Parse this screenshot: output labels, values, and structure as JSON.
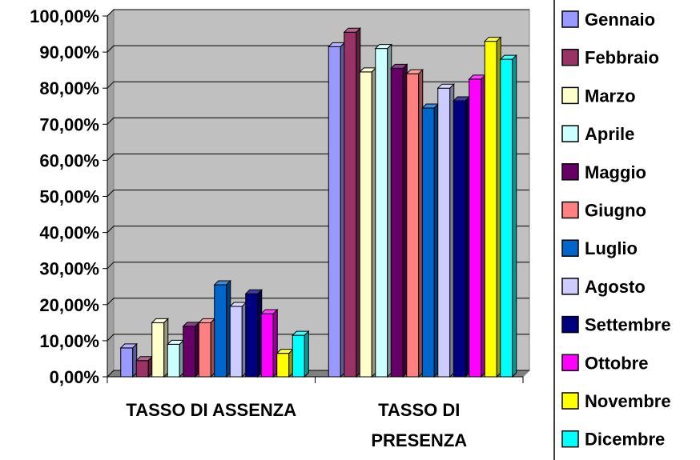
{
  "chart_data": {
    "type": "bar",
    "categories": [
      "TASSO DI ASSENZA",
      "TASSO DI PRESENZA"
    ],
    "category_lines": [
      [
        "TASSO DI ASSENZA"
      ],
      [
        "TASSO DI",
        "PRESENZA"
      ]
    ],
    "ylim": [
      0,
      100
    ],
    "yticks": [
      "0,00%",
      "10,00%",
      "20,00%",
      "30,00%",
      "40,00%",
      "50,00%",
      "60,00%",
      "70,00%",
      "80,00%",
      "90,00%",
      "100,00%"
    ],
    "grid": true,
    "legend_position": "right",
    "series": [
      {
        "name": "Gennaio",
        "color": "#9999FF",
        "values": [
          8.0,
          91.5
        ]
      },
      {
        "name": "Febbraio",
        "color": "#993366",
        "values": [
          4.5,
          95.5
        ]
      },
      {
        "name": "Marzo",
        "color": "#FFFFCC",
        "values": [
          15.0,
          84.5
        ]
      },
      {
        "name": "Aprile",
        "color": "#CCFFFF",
        "values": [
          9.0,
          91.0
        ]
      },
      {
        "name": "Maggio",
        "color": "#660066",
        "values": [
          14.0,
          85.5
        ]
      },
      {
        "name": "Giugno",
        "color": "#FF8080",
        "values": [
          15.0,
          84.0
        ]
      },
      {
        "name": "Luglio",
        "color": "#0066CC",
        "values": [
          25.5,
          74.5
        ]
      },
      {
        "name": "Agosto",
        "color": "#CCCCFF",
        "values": [
          19.5,
          80.0
        ]
      },
      {
        "name": "Settembre",
        "color": "#000080",
        "values": [
          23.0,
          76.5
        ]
      },
      {
        "name": "Ottobre",
        "color": "#FF00FF",
        "values": [
          17.5,
          82.5
        ]
      },
      {
        "name": "Novembre",
        "color": "#FFFF00",
        "values": [
          6.5,
          93.0
        ]
      },
      {
        "name": "Dicembre",
        "color": "#00FFFF",
        "values": [
          11.5,
          88.0
        ]
      }
    ]
  }
}
